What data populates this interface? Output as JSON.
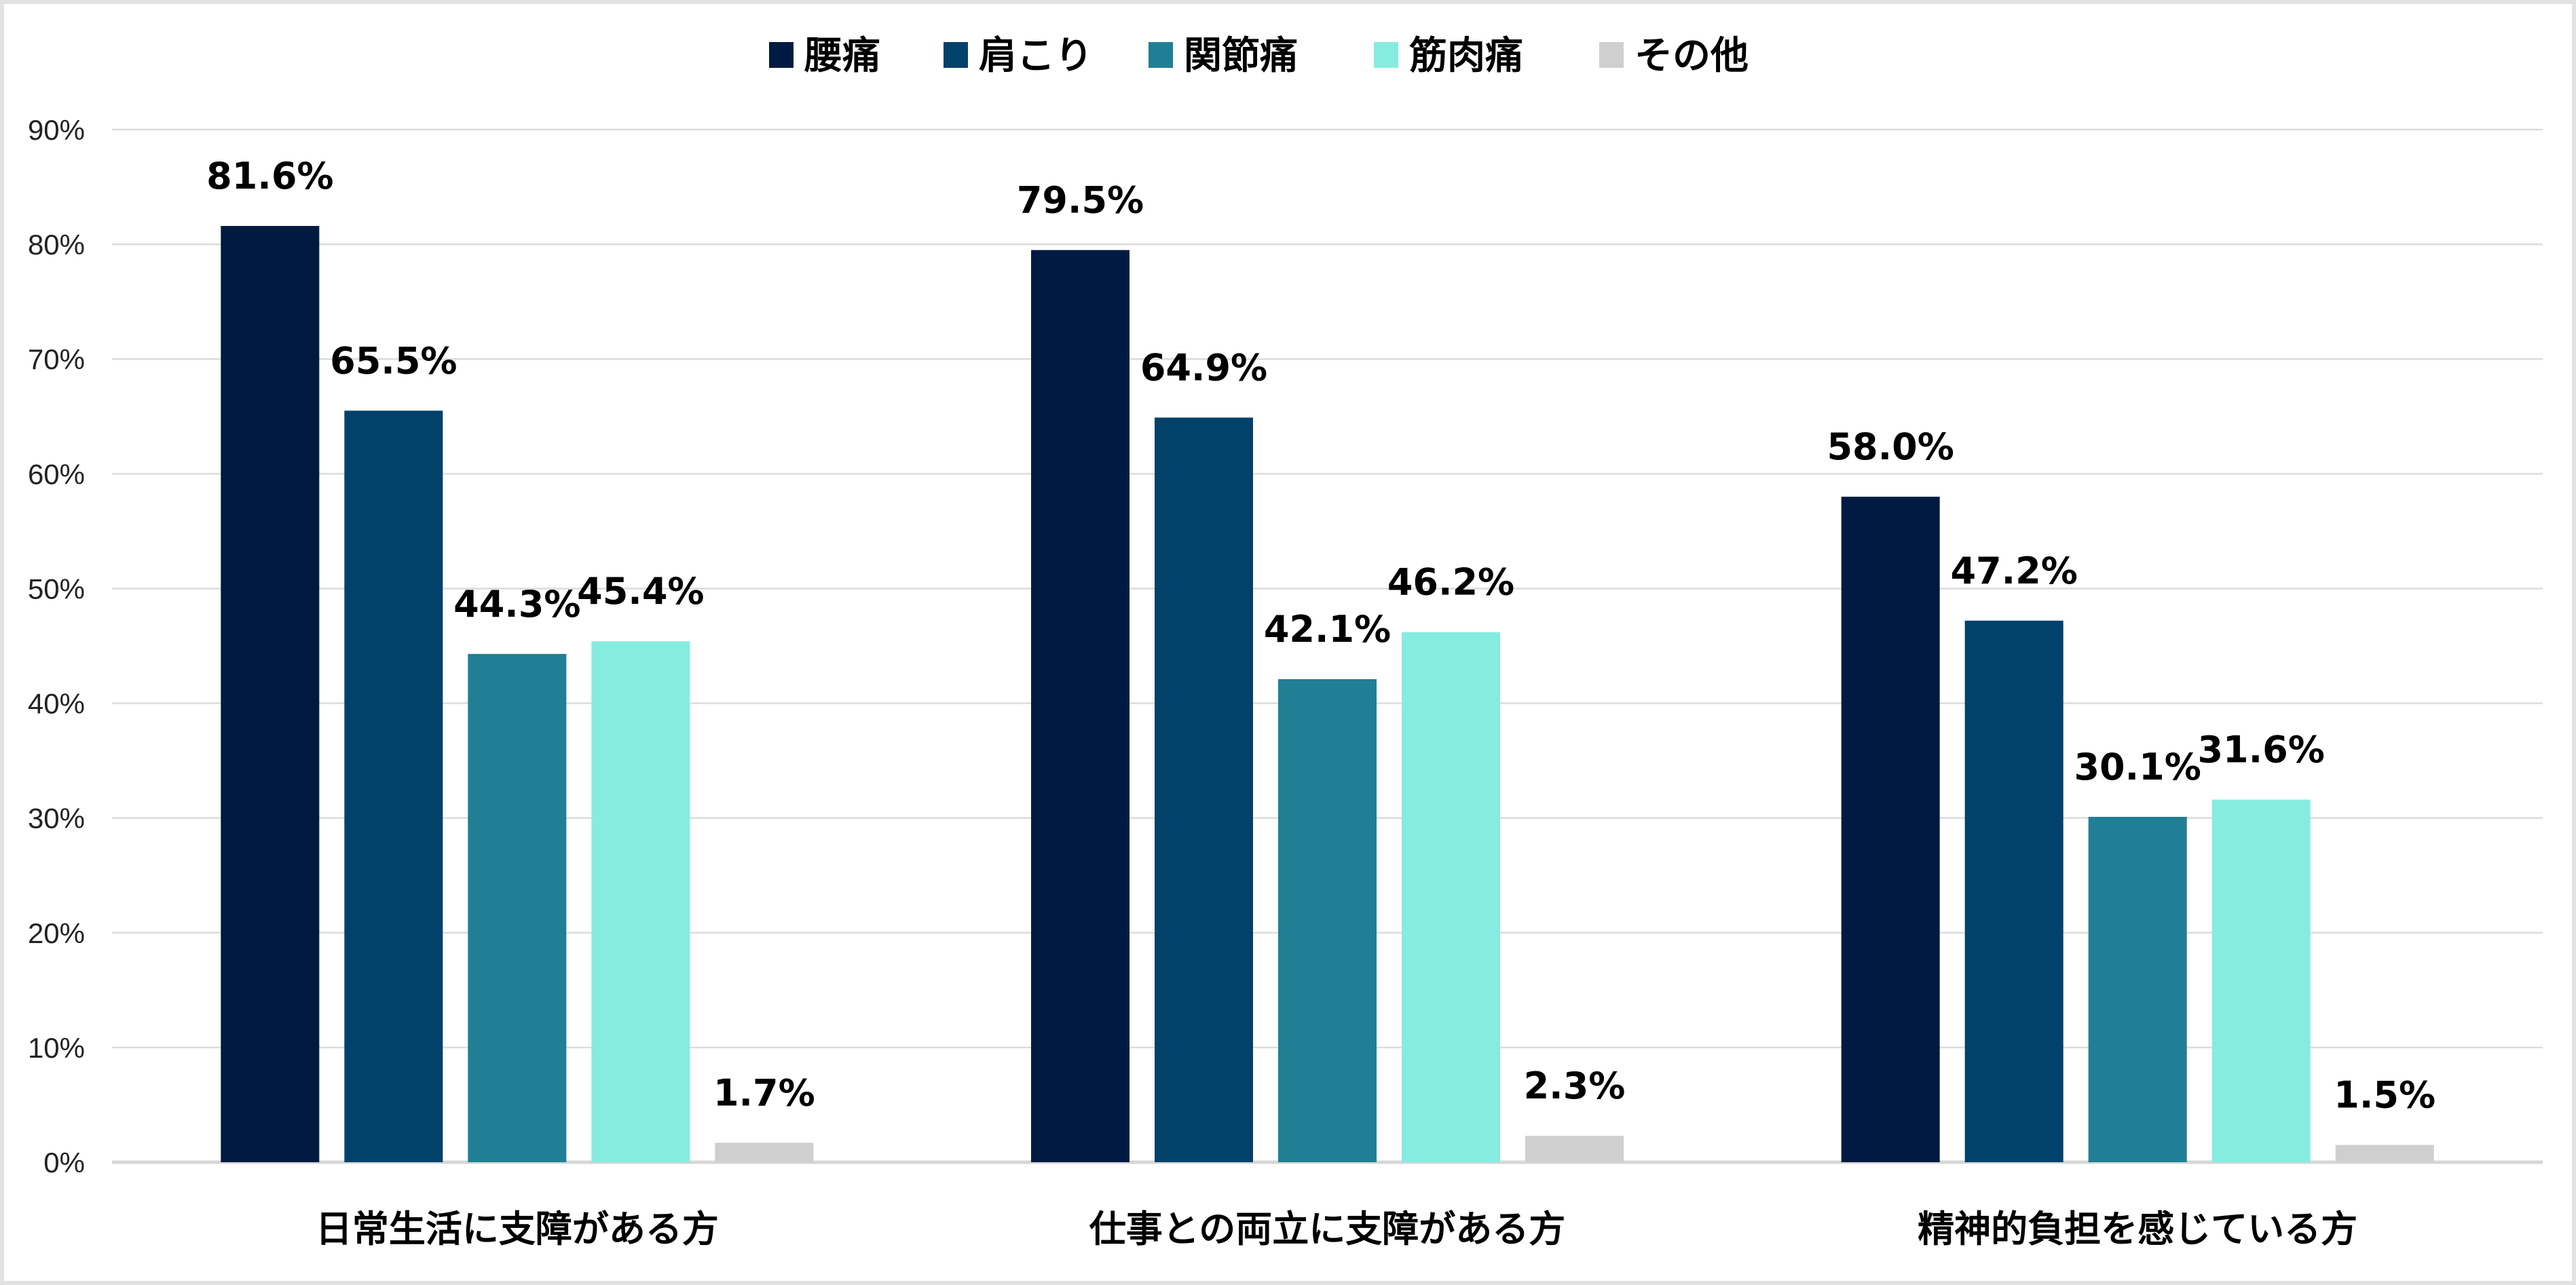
{
  "chart_data": {
    "type": "bar",
    "title": "",
    "xlabel": "",
    "ylabel": "",
    "ylim": [
      0,
      90
    ],
    "yticks": [
      "0%",
      "10%",
      "20%",
      "30%",
      "40%",
      "50%",
      "60%",
      "70%",
      "80%",
      "90%"
    ],
    "grid": true,
    "legend_position": "top",
    "categories": [
      "日常生活に支障がある方",
      "仕事との両立に支障がある方",
      "精神的負担を感じている方"
    ],
    "series": [
      {
        "name": "腰痛",
        "color": "#001A41",
        "values": [
          81.6,
          79.5,
          58.0
        ],
        "labels": [
          "81.6%",
          "79.5%",
          "58.0%"
        ]
      },
      {
        "name": "肩こり",
        "color": "#02416A",
        "values": [
          65.5,
          64.9,
          47.2
        ],
        "labels": [
          "65.5%",
          "64.9%",
          "47.2%"
        ]
      },
      {
        "name": "関節痛",
        "color": "#207F94",
        "values": [
          44.3,
          42.1,
          30.1
        ],
        "labels": [
          "44.3%",
          "42.1%",
          "30.1%"
        ]
      },
      {
        "name": "筋肉痛",
        "color": "#86ECE0",
        "values": [
          45.4,
          46.2,
          31.6
        ],
        "labels": [
          "45.4%",
          "46.2%",
          "31.6%"
        ]
      },
      {
        "name": "その他",
        "color": "#D0CFD0",
        "values": [
          1.7,
          2.3,
          1.5
        ],
        "labels": [
          "1.7%",
          "2.3%",
          "1.5%"
        ]
      }
    ]
  }
}
